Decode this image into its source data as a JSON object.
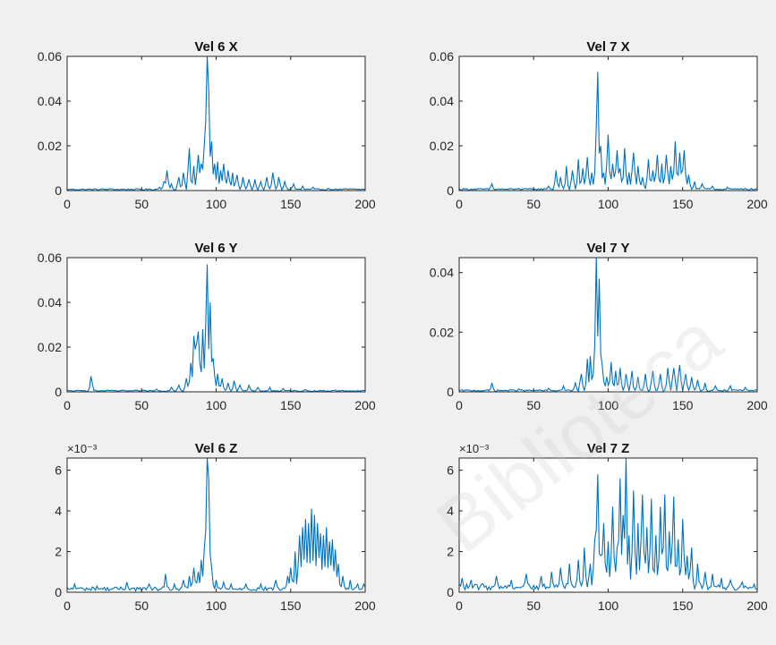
{
  "figure": {
    "background": "#f0f0f0",
    "line_color": "#0072bd",
    "axes_bg": "#ffffff"
  },
  "watermark": {
    "text": "Biblioteca"
  },
  "chart_data": [
    {
      "type": "line",
      "title": "Vel 6 X",
      "xlim": [
        0,
        200
      ],
      "ylim": [
        0,
        0.06
      ],
      "xticks": [
        "0",
        "50",
        "100",
        "150",
        "200"
      ],
      "yticks": [
        "0",
        "0.02",
        "0.04",
        "0.06"
      ],
      "yticks_values": [
        0,
        0.02,
        0.04,
        0.06
      ],
      "exponent": "",
      "noise": 0.0007,
      "peaks": [
        [
          30,
          0.0008
        ],
        [
          55,
          0.0008
        ],
        [
          62,
          0.0015
        ],
        [
          65,
          0.004
        ],
        [
          67,
          0.009
        ],
        [
          70,
          0.003
        ],
        [
          75,
          0.006
        ],
        [
          78,
          0.008
        ],
        [
          82,
          0.019
        ],
        [
          85,
          0.011
        ],
        [
          88,
          0.016
        ],
        [
          90,
          0.012
        ],
        [
          92,
          0.02
        ],
        [
          94,
          0.06
        ],
        [
          95,
          0.045
        ],
        [
          97,
          0.022
        ],
        [
          99,
          0.012
        ],
        [
          101,
          0.013
        ],
        [
          103,
          0.009
        ],
        [
          105,
          0.012
        ],
        [
          108,
          0.009
        ],
        [
          111,
          0.008
        ],
        [
          114,
          0.007
        ],
        [
          118,
          0.006
        ],
        [
          122,
          0.005
        ],
        [
          126,
          0.005
        ],
        [
          130,
          0.004
        ],
        [
          134,
          0.006
        ],
        [
          138,
          0.008
        ],
        [
          142,
          0.006
        ],
        [
          146,
          0.004
        ],
        [
          152,
          0.003
        ],
        [
          158,
          0.002
        ],
        [
          165,
          0.0015
        ],
        [
          175,
          0.001
        ],
        [
          190,
          0.0008
        ]
      ]
    },
    {
      "type": "line",
      "title": "Vel 7 X",
      "xlim": [
        0,
        200
      ],
      "ylim": [
        0,
        0.06
      ],
      "xticks": [
        "0",
        "50",
        "100",
        "150",
        "200"
      ],
      "yticks": [
        "0",
        "0.02",
        "0.04",
        "0.06"
      ],
      "yticks_values": [
        0,
        0.02,
        0.04,
        0.06
      ],
      "exponent": "",
      "noise": 0.0008,
      "peaks": [
        [
          22,
          0.003
        ],
        [
          40,
          0.001
        ],
        [
          60,
          0.002
        ],
        [
          65,
          0.009
        ],
        [
          68,
          0.006
        ],
        [
          72,
          0.011
        ],
        [
          76,
          0.009
        ],
        [
          80,
          0.014
        ],
        [
          83,
          0.01
        ],
        [
          86,
          0.015
        ],
        [
          89,
          0.008
        ],
        [
          92,
          0.028
        ],
        [
          93,
          0.053
        ],
        [
          95,
          0.02
        ],
        [
          97,
          0.008
        ],
        [
          100,
          0.025
        ],
        [
          103,
          0.012
        ],
        [
          106,
          0.018
        ],
        [
          108,
          0.01
        ],
        [
          111,
          0.019
        ],
        [
          114,
          0.008
        ],
        [
          117,
          0.017
        ],
        [
          120,
          0.011
        ],
        [
          123,
          0.006
        ],
        [
          127,
          0.014
        ],
        [
          130,
          0.009
        ],
        [
          133,
          0.016
        ],
        [
          136,
          0.012
        ],
        [
          139,
          0.016
        ],
        [
          142,
          0.011
        ],
        [
          145,
          0.022
        ],
        [
          148,
          0.017
        ],
        [
          151,
          0.018
        ],
        [
          154,
          0.007
        ],
        [
          158,
          0.004
        ],
        [
          163,
          0.003
        ],
        [
          170,
          0.002
        ],
        [
          180,
          0.0015
        ],
        [
          192,
          0.001
        ]
      ]
    },
    {
      "type": "line",
      "title": "Vel 6 Y",
      "xlim": [
        0,
        200
      ],
      "ylim": [
        0,
        0.06
      ],
      "xticks": [
        "0",
        "50",
        "100",
        "150",
        "200"
      ],
      "yticks": [
        "0",
        "0.02",
        "0.04",
        "0.06"
      ],
      "yticks_values": [
        0,
        0.02,
        0.04,
        0.06
      ],
      "exponent": "",
      "noise": 0.0006,
      "peaks": [
        [
          16,
          0.007
        ],
        [
          30,
          0.0008
        ],
        [
          60,
          0.0012
        ],
        [
          70,
          0.002
        ],
        [
          75,
          0.003
        ],
        [
          80,
          0.006
        ],
        [
          83,
          0.013
        ],
        [
          85,
          0.025
        ],
        [
          86,
          0.019
        ],
        [
          87,
          0.022
        ],
        [
          88,
          0.027
        ],
        [
          89,
          0.013
        ],
        [
          91,
          0.028
        ],
        [
          93,
          0.03
        ],
        [
          94,
          0.057
        ],
        [
          96,
          0.04
        ],
        [
          98,
          0.015
        ],
        [
          101,
          0.008
        ],
        [
          104,
          0.006
        ],
        [
          108,
          0.004
        ],
        [
          112,
          0.005
        ],
        [
          116,
          0.003
        ],
        [
          122,
          0.003
        ],
        [
          128,
          0.002
        ],
        [
          136,
          0.002
        ],
        [
          145,
          0.0015
        ],
        [
          160,
          0.001
        ],
        [
          180,
          0.0008
        ]
      ]
    },
    {
      "type": "line",
      "title": "Vel 7 Y",
      "xlim": [
        0,
        200
      ],
      "ylim": [
        0,
        0.045
      ],
      "xticks": [
        "0",
        "50",
        "100",
        "150",
        "200"
      ],
      "yticks": [
        "0",
        "0.02",
        "0.04"
      ],
      "yticks_values": [
        0,
        0.02,
        0.04
      ],
      "exponent": "",
      "noise": 0.0006,
      "peaks": [
        [
          22,
          0.003
        ],
        [
          40,
          0.001
        ],
        [
          60,
          0.0012
        ],
        [
          70,
          0.002
        ],
        [
          78,
          0.003
        ],
        [
          82,
          0.006
        ],
        [
          86,
          0.011
        ],
        [
          88,
          0.012
        ],
        [
          90,
          0.006
        ],
        [
          92,
          0.045
        ],
        [
          94,
          0.038
        ],
        [
          96,
          0.009
        ],
        [
          99,
          0.005
        ],
        [
          102,
          0.01
        ],
        [
          105,
          0.007
        ],
        [
          108,
          0.008
        ],
        [
          112,
          0.006
        ],
        [
          116,
          0.007
        ],
        [
          120,
          0.005
        ],
        [
          125,
          0.006
        ],
        [
          130,
          0.007
        ],
        [
          135,
          0.006
        ],
        [
          140,
          0.008
        ],
        [
          144,
          0.008
        ],
        [
          148,
          0.009
        ],
        [
          152,
          0.006
        ],
        [
          156,
          0.005
        ],
        [
          160,
          0.004
        ],
        [
          165,
          0.003
        ],
        [
          172,
          0.002
        ],
        [
          182,
          0.002
        ],
        [
          192,
          0.0015
        ]
      ]
    },
    {
      "type": "line",
      "title": "Vel 6 Z",
      "xlim": [
        0,
        200
      ],
      "ylim": [
        0,
        0.0066
      ],
      "xticks": [
        "0",
        "50",
        "100",
        "150",
        "200"
      ],
      "yticks": [
        "0",
        "2",
        "4",
        "6"
      ],
      "yticks_values": [
        0,
        0.002,
        0.004,
        0.006
      ],
      "exponent": "×10⁻³",
      "noise": 0.00022,
      "peaks": [
        [
          5,
          0.0004
        ],
        [
          20,
          0.0003
        ],
        [
          40,
          0.0005
        ],
        [
          55,
          0.0004
        ],
        [
          66,
          0.0009
        ],
        [
          72,
          0.0004
        ],
        [
          78,
          0.0006
        ],
        [
          82,
          0.0008
        ],
        [
          85,
          0.0012
        ],
        [
          88,
          0.001
        ],
        [
          90,
          0.0016
        ],
        [
          92,
          0.0021
        ],
        [
          94,
          0.0066
        ],
        [
          95,
          0.0056
        ],
        [
          97,
          0.0012
        ],
        [
          100,
          0.0006
        ],
        [
          105,
          0.0005
        ],
        [
          110,
          0.0004
        ],
        [
          120,
          0.0004
        ],
        [
          130,
          0.0004
        ],
        [
          140,
          0.0006
        ],
        [
          148,
          0.0008
        ],
        [
          150,
          0.0012
        ],
        [
          153,
          0.002
        ],
        [
          156,
          0.0028
        ],
        [
          158,
          0.0032
        ],
        [
          160,
          0.0036
        ],
        [
          162,
          0.0034
        ],
        [
          164,
          0.0041
        ],
        [
          166,
          0.0038
        ],
        [
          168,
          0.0034
        ],
        [
          170,
          0.0029
        ],
        [
          172,
          0.0028
        ],
        [
          174,
          0.0032
        ],
        [
          176,
          0.0025
        ],
        [
          178,
          0.0026
        ],
        [
          180,
          0.0021
        ],
        [
          182,
          0.0014
        ],
        [
          185,
          0.0008
        ],
        [
          190,
          0.0006
        ],
        [
          195,
          0.0004
        ],
        [
          199,
          0.0004
        ]
      ]
    },
    {
      "type": "line",
      "title": "Vel 7 Z",
      "xlim": [
        0,
        200
      ],
      "ylim": [
        0,
        0.0066
      ],
      "xticks": [
        "0",
        "50",
        "100",
        "150",
        "200"
      ],
      "yticks": [
        "0",
        "2",
        "4",
        "6"
      ],
      "yticks_values": [
        0,
        0.002,
        0.004,
        0.006
      ],
      "exponent": "×10⁻³",
      "noise": 0.00035,
      "peaks": [
        [
          2,
          0.0007
        ],
        [
          8,
          0.0006
        ],
        [
          15,
          0.0004
        ],
        [
          25,
          0.0008
        ],
        [
          35,
          0.0006
        ],
        [
          45,
          0.0009
        ],
        [
          55,
          0.0008
        ],
        [
          62,
          0.001
        ],
        [
          68,
          0.0012
        ],
        [
          74,
          0.0014
        ],
        [
          80,
          0.0016
        ],
        [
          84,
          0.0022
        ],
        [
          88,
          0.0014
        ],
        [
          91,
          0.0026
        ],
        [
          93,
          0.0058
        ],
        [
          95,
          0.0018
        ],
        [
          97,
          0.0034
        ],
        [
          100,
          0.0025
        ],
        [
          103,
          0.0042
        ],
        [
          106,
          0.0022
        ],
        [
          108,
          0.0056
        ],
        [
          110,
          0.0038
        ],
        [
          112,
          0.0066
        ],
        [
          114,
          0.0028
        ],
        [
          117,
          0.005
        ],
        [
          120,
          0.0034
        ],
        [
          123,
          0.0048
        ],
        [
          126,
          0.0032
        ],
        [
          129,
          0.0046
        ],
        [
          132,
          0.0028
        ],
        [
          135,
          0.0042
        ],
        [
          138,
          0.0048
        ],
        [
          141,
          0.003
        ],
        [
          144,
          0.0047
        ],
        [
          147,
          0.0026
        ],
        [
          150,
          0.0036
        ],
        [
          153,
          0.0018
        ],
        [
          156,
          0.0022
        ],
        [
          160,
          0.0014
        ],
        [
          165,
          0.001
        ],
        [
          170,
          0.0009
        ],
        [
          176,
          0.0007
        ],
        [
          182,
          0.0006
        ],
        [
          190,
          0.0005
        ],
        [
          198,
          0.0004
        ]
      ]
    }
  ]
}
